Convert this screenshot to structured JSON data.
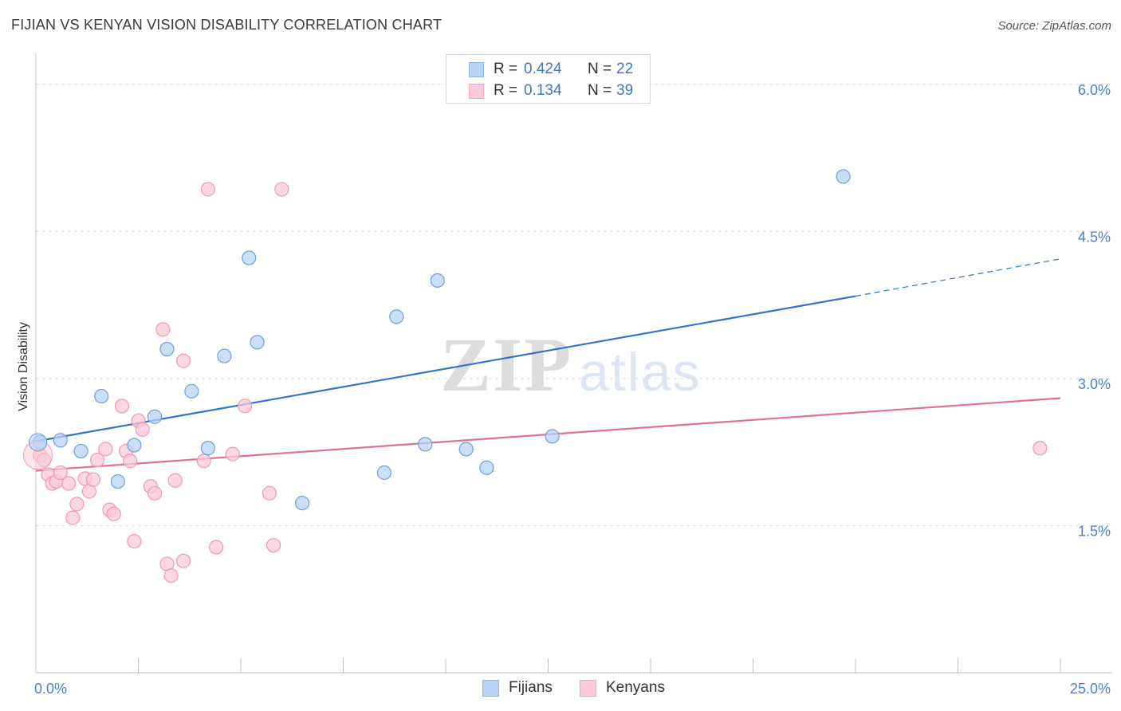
{
  "title": "FIJIAN VS KENYAN VISION DISABILITY CORRELATION CHART",
  "source": "Source: ZipAtlas.com",
  "watermark": {
    "part1": "ZIP",
    "part2": "atlas"
  },
  "legend": {
    "rows": [
      {
        "r_label": "R =",
        "r_value": "0.424",
        "n_label": "N =",
        "n_value": "22",
        "color": "#b8d3f4",
        "border": "#8cb4e6"
      },
      {
        "r_label": "R =",
        "r_value": "0.134",
        "n_label": "N =",
        "n_value": "39",
        "color": "#fbcad8",
        "border": "#f3a3bd"
      }
    ],
    "bottom": [
      {
        "label": "Fijians",
        "color": "#b8d3f4",
        "border": "#8cb4e6"
      },
      {
        "label": "Kenyans",
        "color": "#fbcad8",
        "border": "#f3a3bd"
      }
    ]
  },
  "chart_data": {
    "type": "scatter",
    "title": "FIJIAN VS KENYAN VISION DISABILITY CORRELATION CHART",
    "xlabel": "",
    "ylabel": "Vision Disability",
    "xlim": [
      0,
      25
    ],
    "ylim": [
      0,
      6.25
    ],
    "x_tick_labels": [
      "0.0%",
      "25.0%"
    ],
    "y_ticks": [
      {
        "value": 1.5,
        "label": "1.5%"
      },
      {
        "value": 3.0,
        "label": "3.0%"
      },
      {
        "value": 4.5,
        "label": "4.5%"
      },
      {
        "value": 6.0,
        "label": "6.0%"
      }
    ],
    "x_minor_ticks": [
      0,
      2.5,
      5,
      7.5,
      10,
      12.5,
      15,
      17.5,
      20,
      22.5,
      25
    ],
    "grid": true,
    "series": [
      {
        "name": "Fijians",
        "color": "#b8d3f4",
        "stroke": "#6d9fdc",
        "line_color": "#2e73cc",
        "trend": {
          "x0": 0,
          "y0": 2.36,
          "x1": 20,
          "y1": 3.84,
          "dash_to_x": 25,
          "dash_to_y": 4.22
        },
        "points": [
          [
            0.1,
            2.35
          ],
          [
            0.6,
            2.37
          ],
          [
            1.1,
            2.26
          ],
          [
            1.6,
            2.82
          ],
          [
            2.0,
            1.95
          ],
          [
            2.4,
            2.32
          ],
          [
            2.9,
            2.61
          ],
          [
            3.2,
            3.3
          ],
          [
            3.8,
            2.87
          ],
          [
            4.2,
            2.29
          ],
          [
            4.6,
            3.23
          ],
          [
            5.2,
            4.23
          ],
          [
            5.4,
            3.37
          ],
          [
            6.5,
            1.73
          ],
          [
            8.5,
            2.04
          ],
          [
            8.8,
            3.63
          ],
          [
            9.5,
            2.33
          ],
          [
            9.8,
            4.0
          ],
          [
            10.5,
            2.28
          ],
          [
            11.0,
            2.09
          ],
          [
            12.6,
            2.41
          ],
          [
            19.7,
            5.06
          ]
        ]
      },
      {
        "name": "Kenyans",
        "color": "#fbcad8",
        "stroke": "#ee98b6",
        "line_color": "#e0709a",
        "trend": {
          "x0": 0,
          "y0": 2.06,
          "x1": 25,
          "y1": 2.8
        },
        "points": [
          [
            0.1,
            2.22
          ],
          [
            0.2,
            2.17
          ],
          [
            0.3,
            2.02
          ],
          [
            0.4,
            1.93
          ],
          [
            0.5,
            1.95
          ],
          [
            0.6,
            2.04
          ],
          [
            0.8,
            1.93
          ],
          [
            0.9,
            1.58
          ],
          [
            1.0,
            1.72
          ],
          [
            1.2,
            1.98
          ],
          [
            1.3,
            1.85
          ],
          [
            1.4,
            1.97
          ],
          [
            1.5,
            2.17
          ],
          [
            1.7,
            2.28
          ],
          [
            1.8,
            1.66
          ],
          [
            1.9,
            1.62
          ],
          [
            2.1,
            2.72
          ],
          [
            2.2,
            2.26
          ],
          [
            2.3,
            2.16
          ],
          [
            2.4,
            1.34
          ],
          [
            2.5,
            2.57
          ],
          [
            2.6,
            2.48
          ],
          [
            2.8,
            1.9
          ],
          [
            2.9,
            1.83
          ],
          [
            3.1,
            3.5
          ],
          [
            3.2,
            1.11
          ],
          [
            3.3,
            0.99
          ],
          [
            3.4,
            1.96
          ],
          [
            3.6,
            1.14
          ],
          [
            3.6,
            3.18
          ],
          [
            4.1,
            2.16
          ],
          [
            4.2,
            4.93
          ],
          [
            4.4,
            1.28
          ],
          [
            4.8,
            2.23
          ],
          [
            5.1,
            2.72
          ],
          [
            5.7,
            1.83
          ],
          [
            5.8,
            1.3
          ],
          [
            6.0,
            4.93
          ],
          [
            24.5,
            2.29
          ]
        ]
      }
    ]
  }
}
